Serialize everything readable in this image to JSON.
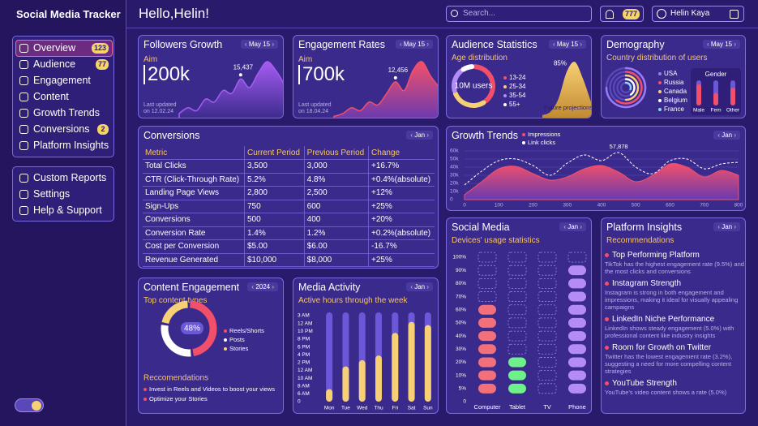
{
  "header": {
    "brand": "Social Media Tracker",
    "greeting": "Hello,Helin!",
    "search_placeholder": "Search...",
    "notifications": 777,
    "user": "Helin Kaya"
  },
  "sidebar": {
    "nav": [
      {
        "label": "Overview",
        "badge": 123
      },
      {
        "label": "Audience",
        "badge": 77
      },
      {
        "label": "Engagement"
      },
      {
        "label": "Content"
      },
      {
        "label": "Growth Trends"
      },
      {
        "label": "Conversions",
        "badge": 2
      },
      {
        "label": "Platform Insights"
      }
    ],
    "secondary": [
      "Custom Reports",
      "Settings",
      "Help & Support"
    ]
  },
  "followers_growth": {
    "type": "area",
    "title": "Followers Growth",
    "period": "May 15",
    "aim_label": "Aim",
    "aim": "200k",
    "updated": "Last updated on 12.02.24",
    "annotation": "15,437",
    "color": "#a65cf2",
    "values": [
      2,
      4,
      3,
      7,
      6,
      10,
      9,
      14,
      11,
      16,
      20,
      17,
      12
    ]
  },
  "engagement_rates": {
    "type": "area",
    "title": "Engagement Rates",
    "period": "May 15",
    "aim_label": "Aim",
    "aim": "700k",
    "updated": "Last updated on 18.04.24",
    "annotation": "12,456",
    "color": "#f2506a",
    "values": [
      1,
      2,
      4,
      3,
      6,
      5,
      9,
      13,
      10,
      17,
      20,
      15,
      11
    ]
  },
  "audience_statistics": {
    "type": "pie",
    "title": "Audience Statistics",
    "period": "May 15",
    "subtitle": "Age distribution",
    "center_label": "10M users",
    "categories": [
      "13-24",
      "25-34",
      "35-54",
      "55+"
    ],
    "values": [
      40,
      30,
      20,
      10
    ],
    "colors": [
      "#f2506a",
      "#f7cf74",
      "#b58cf5",
      "#ffffff"
    ],
    "projection_label": "85%",
    "projection_caption": "Future projections",
    "projection_values": [
      5,
      10,
      30,
      70,
      85,
      60,
      25
    ]
  },
  "demography": {
    "type": "pie",
    "title": "Demography",
    "period": "May 15",
    "subtitle": "Country distribution of users",
    "categories": [
      "USA",
      "Russia",
      "Canada",
      "Belgium",
      "France"
    ],
    "values": [
      75,
      60,
      50,
      40,
      30
    ],
    "colors": [
      "#9b7bf5",
      "#f2506a",
      "#f7cf74",
      "#ffffff",
      "#8fd0ff"
    ],
    "gender": {
      "type": "bar",
      "title": "Gender",
      "categories": [
        "Male",
        "Fem",
        "Other"
      ],
      "values": [
        85,
        50,
        70
      ],
      "ylim": [
        0,
        100
      ],
      "color": "#f2506a"
    }
  },
  "conversions": {
    "title": "Conversions",
    "period": "Jan",
    "columns": [
      "Metric",
      "Current Period",
      "Previous Period",
      "Change"
    ],
    "rows": [
      [
        "Total Clicks",
        "3,500",
        "3,000",
        "+16.7%"
      ],
      [
        "CTR (Click-Through Rate)",
        "5.2%",
        "4.8%",
        "+0.4%(absolute)"
      ],
      [
        "Landing Page Views",
        "2,800",
        "2,500",
        "+12%"
      ],
      [
        "Sign-Ups",
        "750",
        "600",
        "+25%"
      ],
      [
        "Conversions",
        "500",
        "400",
        "+20%"
      ],
      [
        "Conversion Rate",
        "1.4%",
        "1.2%",
        "+0.2%(absolute)"
      ],
      [
        "Cost per Conversion",
        "$5.00",
        "$6.00",
        "-16.7%"
      ],
      [
        "Revenue Generated",
        "$10,000",
        "$8,000",
        "+25%"
      ]
    ]
  },
  "growth_trends": {
    "type": "line",
    "title": "Growth Trends",
    "period": "Jan",
    "annotation": "57,878",
    "x": [
      0,
      50,
      100,
      150,
      200,
      250,
      300,
      350,
      400,
      450,
      500,
      550,
      600,
      650,
      700,
      750,
      800
    ],
    "series": [
      {
        "name": "Impressions",
        "color": "#f2506a",
        "values": [
          6000,
          22000,
          38000,
          41000,
          32000,
          24000,
          28000,
          38000,
          42000,
          34000,
          22000,
          30000,
          44000,
          40000,
          28000,
          36000,
          30000
        ]
      },
      {
        "name": "Link clicks",
        "color": "#ffffff",
        "values": [
          18000,
          35000,
          48000,
          50000,
          42000,
          30000,
          45000,
          55000,
          48000,
          57878,
          40000,
          32000,
          48000,
          50000,
          38000,
          44000,
          46000
        ]
      }
    ],
    "xlim": [
      0,
      800
    ],
    "xticks": [
      0,
      100,
      200,
      300,
      400,
      500,
      600,
      700,
      800
    ],
    "ylim": [
      0,
      60000
    ],
    "yticks": [
      0,
      {
        "value": 10000,
        "label": "10k"
      },
      {
        "value": 20000,
        "label": "20k"
      },
      {
        "value": 30000,
        "label": "30k"
      },
      {
        "value": 40000,
        "label": "40k"
      },
      {
        "value": 50000,
        "label": "50k"
      },
      {
        "value": 60000,
        "label": "60k"
      }
    ]
  },
  "social_media": {
    "type": "bar",
    "title": "Social Media",
    "period": "Jan",
    "subtitle": "Devices' usage statistics",
    "categories": [
      "Computer",
      "Tablet",
      "TV",
      "Phone"
    ],
    "values": [
      60,
      20,
      0,
      90
    ],
    "colors": [
      "#f2707a",
      "#6ef08a",
      "#8fd0ff",
      "#b58cf5"
    ],
    "ylim": [
      0,
      100
    ],
    "yticks": [
      0,
      {
        "value": 5,
        "label": "5%"
      },
      {
        "value": 10,
        "label": "10%"
      },
      {
        "value": 20,
        "label": "20%"
      },
      {
        "value": 30,
        "label": "30%"
      },
      {
        "value": 40,
        "label": "40%"
      },
      {
        "value": 50,
        "label": "50%"
      },
      {
        "value": 60,
        "label": "60%"
      },
      {
        "value": 70,
        "label": "70%"
      },
      {
        "value": 80,
        "label": "80%"
      },
      {
        "value": 90,
        "label": "90%"
      },
      {
        "value": 100,
        "label": "100%"
      }
    ]
  },
  "platform_insights": {
    "title": "Platform Insights",
    "period": "Jan",
    "subtitle": "Recommendations",
    "items": [
      {
        "heading": "Top Performing Platform",
        "body": "TikTok has the highest engagement rate (9.5%) and the most clicks and conversions"
      },
      {
        "heading": "Instagram Strength",
        "body": "Instagram is strong in both engagement and impressions, making it ideal for visually appealing campaigns"
      },
      {
        "heading": "LinkedIn Niche Performance",
        "body": "LinkedIn shows steady engagement (5.0%) with professional content like industry insights"
      },
      {
        "heading": "Room for Growth on Twitter",
        "body": "Twitter has the lowest engagement rate (3.2%), suggesting a need for more compelling content strategies"
      },
      {
        "heading": "YouTube Strength",
        "body": "YouTube's video content shows a rate (5.0%)"
      }
    ]
  },
  "content_engagement": {
    "type": "pie",
    "title": "Content Engagement",
    "period": "2024",
    "subtitle": "Top content types",
    "center_label": "48%",
    "categories": [
      "Reels/Shorts",
      "Posts",
      "Stories"
    ],
    "values": [
      48,
      30,
      22
    ],
    "colors": [
      "#f2506a",
      "#ffffff",
      "#f7cf74"
    ],
    "recommendations_title": "Reccomendations",
    "recommendations": [
      "Invest in Reels and Videos to boost your views",
      "Optimize your Stories"
    ]
  },
  "media_activity": {
    "type": "bar",
    "title": "Media Activity",
    "period": "Jan",
    "subtitle": "Active hours through the week",
    "categories": [
      "Mon",
      "Tue",
      "Wed",
      "Thu",
      "Fri",
      "Sat",
      "Sun"
    ],
    "values": [
      1.6,
      4.5,
      5.3,
      5.9,
      8.8,
      10.2,
      9.8
    ],
    "color": "#f7cf74",
    "ylim": [
      0,
      11
    ],
    "yticks": [
      {
        "value": 0,
        "label": "0"
      },
      {
        "value": 1,
        "label": "6 AM"
      },
      {
        "value": 2,
        "label": "8 AM"
      },
      {
        "value": 3,
        "label": "10 AM"
      },
      {
        "value": 4,
        "label": "12 AM"
      },
      {
        "value": 5,
        "label": "2 PM"
      },
      {
        "value": 6,
        "label": "4 PM"
      },
      {
        "value": 7,
        "label": "6 PM"
      },
      {
        "value": 8,
        "label": "8 PM"
      },
      {
        "value": 9,
        "label": "10 PM"
      },
      {
        "value": 10,
        "label": "12 AM"
      },
      {
        "value": 11,
        "label": "3 AM"
      }
    ]
  }
}
